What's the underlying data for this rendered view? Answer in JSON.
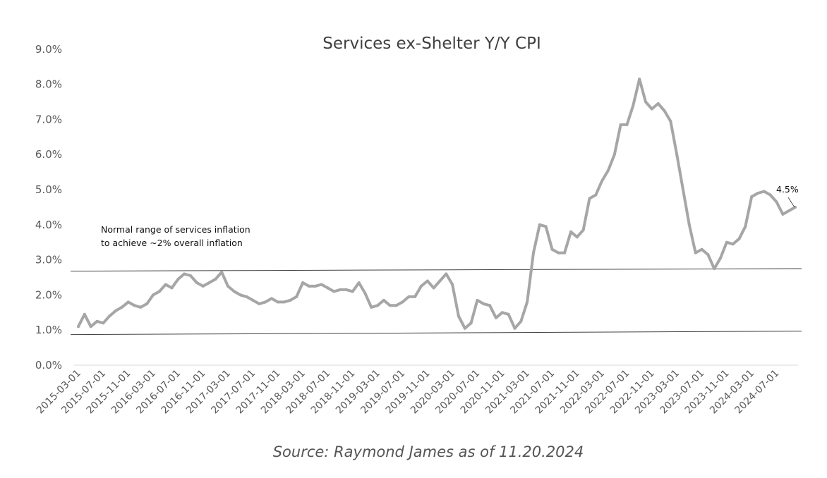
{
  "chart_data": {
    "type": "line",
    "title": "Services ex-Shelter Y/Y CPI",
    "xlabel": "",
    "ylabel": "",
    "ylim": [
      0,
      9
    ],
    "y_ticks": [
      "0.0%",
      "1.0%",
      "2.0%",
      "3.0%",
      "4.0%",
      "5.0%",
      "6.0%",
      "7.0%",
      "8.0%",
      "9.0%"
    ],
    "x_start": "2015-03",
    "x_tick_labels": [
      "2015-03-01",
      "2015-07-01",
      "2015-11-01",
      "2016-03-01",
      "2016-07-01",
      "2016-11-01",
      "2017-03-01",
      "2017-07-01",
      "2017-11-01",
      "2018-03-01",
      "2018-07-01",
      "2018-11-01",
      "2019-03-01",
      "2019-07-01",
      "2019-11-01",
      "2020-03-01",
      "2020-07-01",
      "2020-11-01",
      "2021-03-01",
      "2021-07-01",
      "2021-11-01",
      "2022-03-01",
      "2022-07-01",
      "2022-11-01",
      "2023-03-01",
      "2023-07-01",
      "2023-11-01",
      "2024-03-01",
      "2024-07-01"
    ],
    "tick_every_months": 4,
    "grid": false,
    "series": [
      {
        "name": "Services ex-Shelter Y/Y CPI",
        "color": "#a6a6a6",
        "values": [
          1.1,
          1.45,
          1.1,
          1.25,
          1.2,
          1.4,
          1.55,
          1.65,
          1.8,
          1.7,
          1.65,
          1.75,
          2.0,
          2.1,
          2.3,
          2.2,
          2.45,
          2.6,
          2.55,
          2.35,
          2.25,
          2.35,
          2.45,
          2.65,
          2.25,
          2.1,
          2.0,
          1.95,
          1.85,
          1.75,
          1.8,
          1.9,
          1.8,
          1.8,
          1.85,
          1.95,
          2.35,
          2.25,
          2.25,
          2.3,
          2.2,
          2.1,
          2.15,
          2.15,
          2.1,
          2.35,
          2.05,
          1.65,
          1.7,
          1.85,
          1.7,
          1.7,
          1.8,
          1.95,
          1.95,
          2.25,
          2.4,
          2.2,
          2.4,
          2.6,
          2.3,
          1.4,
          1.05,
          1.2,
          1.85,
          1.75,
          1.7,
          1.35,
          1.5,
          1.45,
          1.05,
          1.25,
          1.8,
          3.2,
          4.0,
          3.95,
          3.3,
          3.2,
          3.2,
          3.8,
          3.65,
          3.85,
          4.75,
          4.85,
          5.25,
          5.55,
          6.0,
          6.85,
          6.85,
          7.4,
          8.15,
          7.5,
          7.3,
          7.45,
          7.25,
          6.95,
          6.0,
          5.0,
          4.0,
          3.2,
          3.3,
          3.15,
          2.75,
          3.05,
          3.5,
          3.45,
          3.6,
          3.95,
          4.8,
          4.9,
          4.95,
          4.85,
          4.65,
          4.3,
          4.4,
          4.5
        ]
      }
    ],
    "reference_lines": [
      {
        "name": "upper-bound",
        "values": [
          2.68,
          2.75
        ],
        "color": "#404040"
      },
      {
        "name": "lower-bound",
        "values": [
          0.87,
          0.97
        ],
        "color": "#404040"
      }
    ],
    "annotations": {
      "range_note_line1": "Normal range of services inflation",
      "range_note_line2": "to achieve ~2% overall inflation",
      "last_value_label": "4.5%"
    },
    "source": "Source: Raymond James as of 11.20.2024"
  }
}
